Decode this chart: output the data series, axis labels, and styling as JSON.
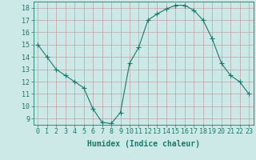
{
  "x": [
    0,
    1,
    2,
    3,
    4,
    5,
    6,
    7,
    8,
    9,
    10,
    11,
    12,
    13,
    14,
    15,
    16,
    17,
    18,
    19,
    20,
    21,
    22,
    23
  ],
  "y": [
    15,
    14,
    13,
    12.5,
    12,
    11.5,
    9.8,
    8.7,
    8.6,
    9.5,
    13.5,
    14.8,
    17,
    17.5,
    17.9,
    18.2,
    18.2,
    17.8,
    17,
    15.5,
    13.5,
    12.5,
    12,
    11
  ],
  "line_color": "#1a7a6a",
  "marker": "+",
  "marker_size": 4,
  "bg_color": "#cce9e8",
  "grid_color": "#c09090",
  "xlabel": "Humidex (Indice chaleur)",
  "xlim": [
    -0.5,
    23.5
  ],
  "ylim": [
    8.5,
    18.5
  ],
  "yticks": [
    9,
    10,
    11,
    12,
    13,
    14,
    15,
    16,
    17,
    18
  ],
  "xticks": [
    0,
    1,
    2,
    3,
    4,
    5,
    6,
    7,
    8,
    9,
    10,
    11,
    12,
    13,
    14,
    15,
    16,
    17,
    18,
    19,
    20,
    21,
    22,
    23
  ],
  "tick_label_size": 6,
  "xlabel_size": 7,
  "axis_color": "#1a7a6a",
  "tick_color": "#1a7a6a",
  "linewidth": 0.8,
  "markeredgewidth": 0.8
}
